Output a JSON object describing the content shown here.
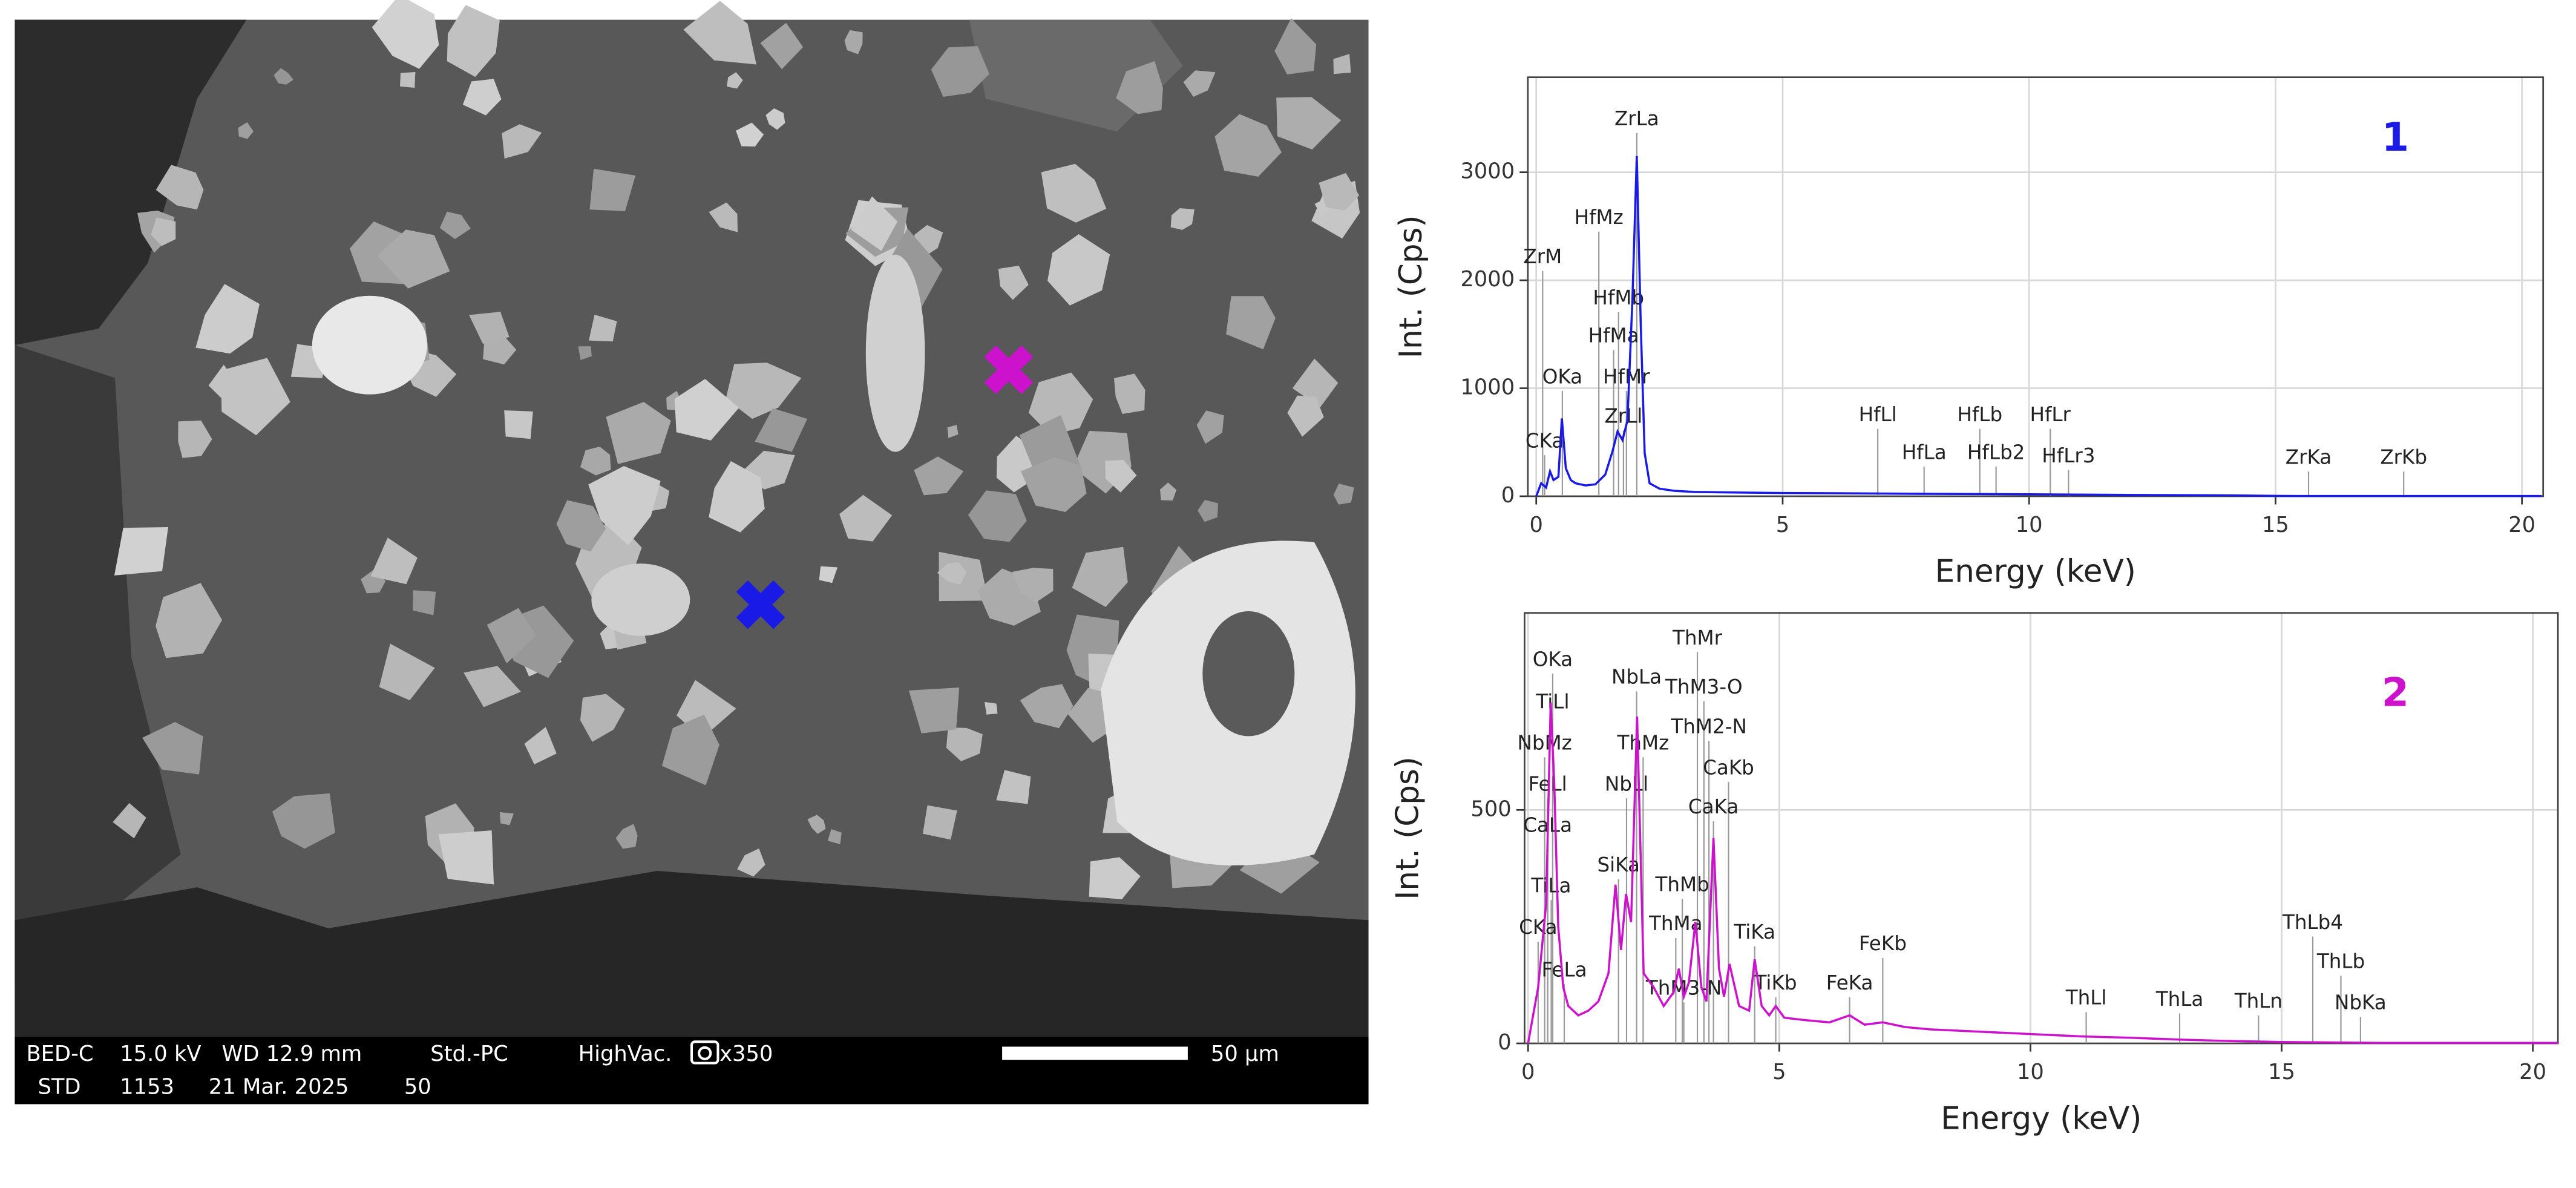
{
  "image": {
    "info": [
      [
        "BED-C",
        "15.0 kV",
        "WD 12.9 mm",
        "Std.-PC",
        "HighVac.",
        "x350"
      ],
      [
        "STD",
        "1153",
        "21 Mar. 2025",
        "50"
      ]
    ],
    "scale_bar": "50 µm"
  },
  "chart_data": [
    {
      "type": "line",
      "title": "1",
      "x_label": "Energy (keV)",
      "y_label": "Int. (Cps)",
      "x": [
        0,
        0.1,
        0.2,
        0.28,
        0.35,
        0.45,
        0.52,
        0.6,
        0.7,
        0.8,
        1.0,
        1.2,
        1.4,
        1.55,
        1.65,
        1.75,
        1.85,
        1.95,
        2.04,
        2.12,
        2.2,
        2.3,
        2.5,
        2.8,
        3.2,
        4,
        5,
        6,
        7,
        8,
        9,
        10,
        11,
        12,
        13,
        14,
        15,
        15.5,
        16,
        17,
        18,
        19,
        20.4
      ],
      "series": [
        {
          "color": "#1a1ae6",
          "values": [
            0,
            120,
            80,
            230,
            150,
            180,
            720,
            260,
            150,
            120,
            100,
            110,
            200,
            420,
            600,
            520,
            700,
            1800,
            3150,
            1600,
            400,
            120,
            70,
            50,
            40,
            35,
            30,
            28,
            25,
            22,
            20,
            18,
            15,
            12,
            10,
            8,
            3,
            2,
            2,
            2,
            2,
            2,
            2
          ]
        }
      ],
      "xlim": [
        -0.17,
        20.43
      ],
      "ylim": [
        0,
        3880
      ],
      "xticks": [
        0,
        5,
        10,
        15,
        20
      ],
      "yticks": [
        0,
        1000,
        2000,
        3000
      ],
      "grid": true,
      "annotations": [
        {
          "text": "ZrLa",
          "x": 2.04,
          "y": 3485
        },
        {
          "text": "HfMz",
          "x": 1.27,
          "y": 2572
        },
        {
          "text": "ZrM",
          "x": 0.13,
          "y": 2207
        },
        {
          "text": "HfMb",
          "x": 1.67,
          "y": 1826
        },
        {
          "text": "HfMa",
          "x": 1.57,
          "y": 1476
        },
        {
          "text": "OKa",
          "x": 0.53,
          "y": 1096
        },
        {
          "text": "HfMr",
          "x": 1.83,
          "y": 1096
        },
        {
          "text": "ZrLl",
          "x": 1.77,
          "y": 730
        },
        {
          "text": "CKa",
          "x": 0.17,
          "y": 502
        },
        {
          "text": "HfLl",
          "x": 6.93,
          "y": 746
        },
        {
          "text": "HfLa",
          "x": 7.87,
          "y": 396
        },
        {
          "text": "HfLb",
          "x": 9.0,
          "y": 746
        },
        {
          "text": "HfLb2",
          "x": 9.33,
          "y": 396
        },
        {
          "text": "HfLr",
          "x": 10.43,
          "y": 746
        },
        {
          "text": "HfLr3",
          "x": 10.8,
          "y": 365
        },
        {
          "text": "ZrKa",
          "x": 15.67,
          "y": 350
        },
        {
          "text": "ZrKb",
          "x": 17.6,
          "y": 350
        }
      ]
    },
    {
      "type": "line",
      "title": "2",
      "x_label": "Energy (keV)",
      "y_label": "Int. (Cps)",
      "x": [
        0,
        0.1,
        0.2,
        0.28,
        0.36,
        0.45,
        0.52,
        0.6,
        0.7,
        0.8,
        0.9,
        1.0,
        1.2,
        1.4,
        1.6,
        1.74,
        1.85,
        1.95,
        2.05,
        2.17,
        2.3,
        2.5,
        2.7,
        2.9,
        3.0,
        3.1,
        3.2,
        3.33,
        3.45,
        3.55,
        3.69,
        3.8,
        3.9,
        4.01,
        4.2,
        4.4,
        4.51,
        4.65,
        4.8,
        4.93,
        5.1,
        5.5,
        6,
        6.4,
        6.7,
        7.06,
        7.5,
        8,
        9,
        10,
        11,
        12,
        13,
        14,
        15,
        16,
        17,
        18,
        19,
        20.5
      ],
      "series": [
        {
          "color": "#cc12cc",
          "values": [
            0,
            60,
            120,
            210,
            300,
            730,
            560,
            250,
            120,
            80,
            70,
            60,
            70,
            90,
            150,
            340,
            200,
            320,
            260,
            700,
            150,
            120,
            80,
            110,
            160,
            100,
            130,
            260,
            120,
            90,
            440,
            160,
            100,
            170,
            80,
            70,
            180,
            80,
            60,
            80,
            55,
            50,
            45,
            60,
            40,
            45,
            35,
            30,
            25,
            20,
            15,
            12,
            8,
            5,
            3,
            2,
            1,
            1,
            1,
            1
          ]
        }
      ],
      "xlim": [
        -0.07,
        20.5
      ],
      "ylim": [
        0,
        922
      ],
      "xticks": [
        0,
        5,
        10,
        15,
        20
      ],
      "yticks": [
        0,
        500
      ],
      "grid": true,
      "annotations": [
        {
          "text": "OKa",
          "x": 0.49,
          "y": 820
        },
        {
          "text": "TiLl",
          "x": 0.49,
          "y": 729
        },
        {
          "text": "NbMz",
          "x": 0.33,
          "y": 641
        },
        {
          "text": "FeLl",
          "x": 0.39,
          "y": 553
        },
        {
          "text": "CaLa",
          "x": 0.39,
          "y": 465
        },
        {
          "text": "TiLa",
          "x": 0.46,
          "y": 335
        },
        {
          "text": "CKa",
          "x": 0.2,
          "y": 246
        },
        {
          "text": "FeLa",
          "x": 0.72,
          "y": 155
        },
        {
          "text": "NbLa",
          "x": 2.16,
          "y": 782
        },
        {
          "text": "NbLl",
          "x": 1.96,
          "y": 553
        },
        {
          "text": "SiKa",
          "x": 1.8,
          "y": 380
        },
        {
          "text": "ThMz",
          "x": 2.29,
          "y": 641
        },
        {
          "text": "ThMr",
          "x": 3.37,
          "y": 866
        },
        {
          "text": "ThM3-O",
          "x": 3.5,
          "y": 761
        },
        {
          "text": "ThM2-N",
          "x": 3.6,
          "y": 676
        },
        {
          "text": "CaKb",
          "x": 3.99,
          "y": 588
        },
        {
          "text": "CaKa",
          "x": 3.69,
          "y": 504
        },
        {
          "text": "ThMb",
          "x": 3.07,
          "y": 338
        },
        {
          "text": "ThMa",
          "x": 2.94,
          "y": 254
        },
        {
          "text": "ThM3-N",
          "x": 3.1,
          "y": 116
        },
        {
          "text": "TiKa",
          "x": 4.51,
          "y": 236
        },
        {
          "text": "TiKb",
          "x": 4.93,
          "y": 127
        },
        {
          "text": "FeKa",
          "x": 6.4,
          "y": 127
        },
        {
          "text": "FeKb",
          "x": 7.06,
          "y": 211
        },
        {
          "text": "ThLl",
          "x": 11.11,
          "y": 95
        },
        {
          "text": "ThLa",
          "x": 12.97,
          "y": 92
        },
        {
          "text": "ThLn",
          "x": 14.54,
          "y": 88
        },
        {
          "text": "ThLb4",
          "x": 15.62,
          "y": 257
        },
        {
          "text": "ThLb",
          "x": 16.18,
          "y": 173
        },
        {
          "text": "NbKa",
          "x": 16.57,
          "y": 85
        }
      ]
    }
  ]
}
